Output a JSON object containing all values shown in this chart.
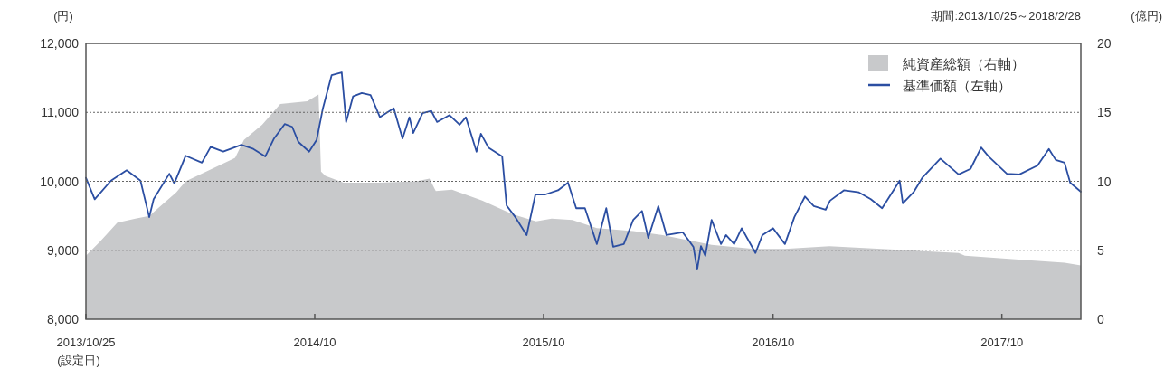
{
  "chart_data": {
    "type": "line",
    "subtitle": "期間:2013/10/25～2018/2/28",
    "ylabel": "(円)",
    "y2label": "(億円)",
    "annotations": [
      "(設定日)"
    ],
    "xlim": [
      "2013-10-25",
      "2018-02-28"
    ],
    "xticks": [
      {
        "value": "2013-10-25",
        "label": "2013/10/25"
      },
      {
        "value": "2014-10-25",
        "label": "2014/10"
      },
      {
        "value": "2015-10-25",
        "label": "2015/10"
      },
      {
        "value": "2016-10-25",
        "label": "2016/10"
      },
      {
        "value": "2017-10-25",
        "label": "2017/10"
      }
    ],
    "ylim": [
      8000,
      12000
    ],
    "yticks": [
      {
        "value": 8000,
        "label": "8,000"
      },
      {
        "value": 9000,
        "label": "9,000"
      },
      {
        "value": 10000,
        "label": "10,000"
      },
      {
        "value": 11000,
        "label": "11,000"
      },
      {
        "value": 12000,
        "label": "12,000"
      }
    ],
    "y2lim": [
      0,
      20
    ],
    "y2ticks": [
      0,
      5,
      10,
      15,
      20
    ],
    "grid": "y",
    "legend": "top right",
    "line_style": "solid",
    "series": [
      {
        "name": "純資産総額（右軸）",
        "type": "area",
        "axis": "y2",
        "color": "#c8c9cb",
        "x": [
          "2013-10-25",
          "2013-11-16",
          "2013-12-14",
          "2014-01-12",
          "2014-02-03",
          "2014-03-18",
          "2014-04-02",
          "2014-06-20",
          "2014-07-04",
          "2014-08-02",
          "2014-08-31",
          "2014-10-13",
          "2014-10-31",
          "2014-11-04",
          "2014-11-11",
          "2014-12-10",
          "2015-02-06",
          "2015-04-05",
          "2015-04-26",
          "2015-05-06",
          "2015-06-01",
          "2015-07-19",
          "2015-09-06",
          "2015-10-13",
          "2015-11-07",
          "2015-12-10",
          "2016-01-18",
          "2016-03-16",
          "2016-05-02",
          "2016-07-19",
          "2016-09-24",
          "2016-11-12",
          "2017-01-23",
          "2017-08-17",
          "2017-08-27",
          "2017-12-01",
          "2018-02-02",
          "2018-02-28"
        ],
        "values": [
          4.6,
          5.6,
          7.0,
          7.3,
          7.5,
          9.2,
          10.0,
          11.7,
          13.0,
          14.1,
          15.6,
          15.8,
          16.3,
          10.7,
          10.4,
          9.9,
          9.9,
          10.0,
          10.2,
          9.3,
          9.4,
          8.6,
          7.6,
          7.1,
          7.3,
          7.2,
          6.6,
          6.4,
          6.1,
          5.4,
          5.1,
          5.1,
          5.3,
          4.8,
          4.6,
          4.3,
          4.1,
          3.9
        ]
      },
      {
        "name": "基準価額（左軸）",
        "type": "line",
        "color": "#2b4ea2",
        "x": [
          "2013-10-25",
          "2013-11-08",
          "2013-12-04",
          "2013-12-29",
          "2014-01-20",
          "2014-02-03",
          "2014-02-10",
          "2014-03-07",
          "2014-03-15",
          "2014-04-02",
          "2014-04-28",
          "2014-05-12",
          "2014-06-01",
          "2014-06-30",
          "2014-07-19",
          "2014-08-07",
          "2014-08-21",
          "2014-09-07",
          "2014-09-19",
          "2014-09-29",
          "2014-10-16",
          "2014-10-28",
          "2014-11-07",
          "2014-11-21",
          "2014-12-07",
          "2014-12-14",
          "2014-12-25",
          "2015-01-08",
          "2015-01-22",
          "2015-02-06",
          "2015-02-28",
          "2015-03-14",
          "2015-03-25",
          "2015-03-31",
          "2015-04-15",
          "2015-04-29",
          "2015-05-08",
          "2015-05-28",
          "2015-06-13",
          "2015-06-23",
          "2015-07-10",
          "2015-07-17",
          "2015-07-29",
          "2015-08-20",
          "2015-08-27",
          "2015-09-10",
          "2015-09-28",
          "2015-10-12",
          "2015-10-28",
          "2015-11-17",
          "2015-12-03",
          "2015-12-16",
          "2015-12-30",
          "2016-01-18",
          "2016-02-02",
          "2016-02-13",
          "2016-03-01",
          "2016-03-16",
          "2016-03-30",
          "2016-04-09",
          "2016-04-25",
          "2016-05-08",
          "2016-06-03",
          "2016-06-20",
          "2016-06-26",
          "2016-07-02",
          "2016-07-09",
          "2016-07-19",
          "2016-08-03",
          "2016-08-11",
          "2016-08-24",
          "2016-09-05",
          "2016-09-27",
          "2016-10-08",
          "2016-10-25",
          "2016-11-13",
          "2016-11-28",
          "2016-12-15",
          "2016-12-29",
          "2017-01-17",
          "2017-01-24",
          "2017-02-15",
          "2017-03-11",
          "2017-03-30",
          "2017-04-17",
          "2017-05-15",
          "2017-05-20",
          "2017-06-06",
          "2017-06-20",
          "2017-07-19",
          "2017-08-17",
          "2017-09-05",
          "2017-09-22",
          "2017-10-04",
          "2017-11-02",
          "2017-11-22",
          "2017-12-21",
          "2018-01-08",
          "2018-01-19",
          "2018-02-02",
          "2018-02-11",
          "2018-02-28"
        ],
        "values": [
          10050,
          9740,
          10010,
          10160,
          10010,
          9480,
          9740,
          10110,
          9970,
          10370,
          10270,
          10500,
          10430,
          10530,
          10470,
          10360,
          10620,
          10830,
          10790,
          10570,
          10430,
          10600,
          11060,
          11540,
          11580,
          10860,
          11230,
          11280,
          11250,
          10930,
          11060,
          10620,
          10930,
          10700,
          10990,
          11020,
          10860,
          10960,
          10820,
          10930,
          10430,
          10690,
          10490,
          10360,
          9650,
          9480,
          9220,
          9810,
          9810,
          9870,
          9980,
          9610,
          9610,
          9090,
          9610,
          9050,
          9090,
          9440,
          9570,
          9180,
          9640,
          9220,
          9260,
          9050,
          8720,
          9060,
          8920,
          9440,
          9090,
          9220,
          9090,
          9320,
          8960,
          9220,
          9320,
          9090,
          9480,
          9780,
          9640,
          9590,
          9720,
          9870,
          9840,
          9740,
          9610,
          10010,
          9680,
          9840,
          10050,
          10330,
          10100,
          10180,
          10490,
          10360,
          10110,
          10100,
          10230,
          10470,
          10310,
          10270,
          9980,
          9850
        ]
      }
    ]
  }
}
